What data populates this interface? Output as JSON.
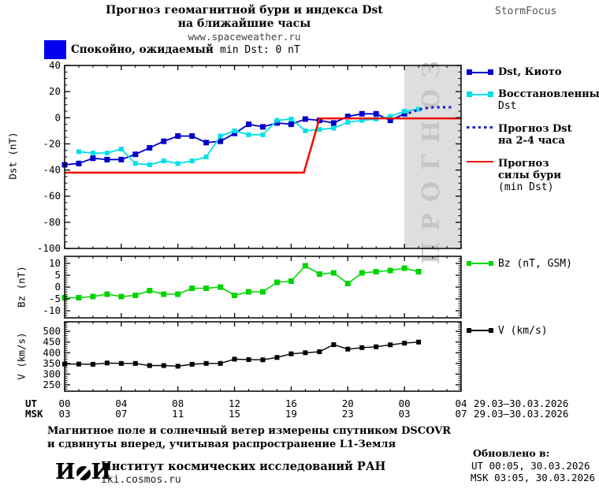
{
  "title": {
    "line1": "Прогноз геомагнитной бури и индекса Dst",
    "line2": "на ближайшие часы",
    "url": "www.spaceweather.ru",
    "brand": "StormFocus"
  },
  "status": {
    "label_ru": "Спокойно, ожидаемый",
    "label_latin": "min Dst: 0 nT",
    "swatch_color": "#0000EE"
  },
  "colors": {
    "kyoto_blue": "#0000CC",
    "restored_cyan": "#00E0E6",
    "forecast_dotted_blue": "#2222CC",
    "storm_red": "#EE1100",
    "bz_green": "#00D400",
    "v_black": "#000000",
    "forecast_band_gray": "#DEDEDE",
    "forecast_band_text_gray": "#C6C6C6"
  },
  "chart_data": [
    {
      "type": "line",
      "name": "dst-panel",
      "ylabel": "Dst (nT)",
      "ylim": [
        -100,
        40
      ],
      "yticks": [
        40,
        20,
        0,
        -20,
        -40,
        -60,
        -80,
        -100
      ],
      "yminor_step": 5,
      "xlim_hours": [
        0,
        28
      ],
      "xtick_hours": [
        0,
        4,
        8,
        12,
        16,
        20,
        24,
        28
      ],
      "grid": false,
      "forecast_band_hours": [
        24,
        28
      ],
      "forecast_band_label": "ПРОГНОЗ",
      "series": [
        {
          "name": "Dst, Киото",
          "color": "#0000CC",
          "width": 1.8,
          "marker": 7,
          "x": [
            0,
            1,
            2,
            3,
            4,
            5,
            6,
            7,
            8,
            9,
            10,
            11,
            12,
            13,
            14,
            15,
            16,
            17,
            18,
            19,
            20,
            21,
            22,
            23,
            24
          ],
          "values": [
            -36,
            -35,
            -31,
            -32,
            -32,
            -28,
            -23,
            -18,
            -14,
            -14,
            -19,
            -18,
            -12,
            -5,
            -7,
            -4,
            -5,
            -1,
            -2,
            -4,
            1,
            3,
            3,
            -2,
            3
          ]
        },
        {
          "name": "Восстановленный Dst",
          "color": "#00E0E6",
          "width": 1.8,
          "marker": 6,
          "x": [
            1,
            2,
            3,
            4,
            5,
            6,
            7,
            8,
            9,
            10,
            11,
            12,
            13,
            14,
            15,
            16,
            17,
            18,
            19,
            20,
            21,
            22,
            23,
            24,
            25
          ],
          "values": [
            -26,
            -27,
            -27,
            -24,
            -35,
            -36,
            -33,
            -35,
            -33,
            -30,
            -14,
            -10,
            -13,
            -13,
            -2,
            -1,
            -10,
            -9,
            -8,
            -3.5,
            -2,
            -1,
            1,
            5,
            6.5
          ]
        },
        {
          "name": "Прогноз Dst на 2-4 часа",
          "color": "#2222CC",
          "width": 3.2,
          "dash": "3.2 4.2",
          "x": [
            24.3,
            24.8,
            25.3,
            26,
            27.5
          ],
          "values": [
            3.5,
            5.5,
            7,
            8,
            8
          ]
        },
        {
          "name": "Прогноз силы бури (min Dst)",
          "color": "#EE1100",
          "width": 2.6,
          "x": [
            0,
            16.9,
            18,
            28
          ],
          "values": [
            -42,
            -42,
            -0.5,
            -0.5
          ]
        }
      ]
    },
    {
      "type": "line",
      "name": "bz-panel",
      "ylabel": "Bz (nT)",
      "ylim": [
        -13,
        13
      ],
      "yticks": [
        10,
        5,
        0,
        -5,
        -10
      ],
      "yminor_step": 1,
      "xlim_hours": [
        0,
        28
      ],
      "xtick_hours": [
        0,
        4,
        8,
        12,
        16,
        20,
        24,
        28
      ],
      "grid": false,
      "series": [
        {
          "name": "Bz (nT, GSM)",
          "color": "#00D400",
          "width": 1.6,
          "marker": 7,
          "x": [
            0,
            1,
            2,
            3,
            4,
            5,
            6,
            7,
            8,
            9,
            10,
            11,
            12,
            13,
            14,
            15,
            16,
            17,
            18,
            19,
            20,
            21,
            22,
            23,
            24,
            25
          ],
          "values": [
            -4.5,
            -4.5,
            -4,
            -3,
            -4,
            -3.5,
            -1.5,
            -3,
            -3,
            -0.5,
            -0.5,
            0,
            -3.5,
            -2,
            -2,
            2,
            2.5,
            9,
            5.5,
            6,
            1.5,
            6,
            6.5,
            7,
            8,
            6.5
          ]
        }
      ]
    },
    {
      "type": "line",
      "name": "v-panel",
      "ylabel": "V (km/s)",
      "ylim": [
        220,
        545
      ],
      "yticks": [
        500,
        450,
        400,
        350,
        300,
        250
      ],
      "yminor_step": 10,
      "xlim_hours": [
        0,
        28
      ],
      "xtick_hours": [
        0,
        4,
        8,
        12,
        16,
        20,
        24,
        28
      ],
      "grid": false,
      "series": [
        {
          "name": "V (km/s)",
          "color": "#000000",
          "width": 1.4,
          "marker": 6,
          "x": [
            0,
            1,
            2,
            3,
            4,
            5,
            6,
            7,
            8,
            9,
            10,
            11,
            12,
            13,
            14,
            15,
            16,
            17,
            18,
            19,
            20,
            21,
            22,
            23,
            24,
            25
          ],
          "values": [
            347,
            347,
            346,
            352,
            350,
            350,
            340,
            340,
            337,
            346,
            350,
            350,
            370,
            368,
            367,
            378,
            395,
            400,
            405,
            438,
            417,
            424,
            428,
            437,
            445,
            450
          ]
        }
      ]
    }
  ],
  "xaxis": {
    "ut_label": "UT",
    "msk_label": "MSK",
    "tick_hours": [
      0,
      4,
      8,
      12,
      16,
      20,
      24,
      28
    ],
    "ut_ticks": [
      "00",
      "04",
      "08",
      "12",
      "16",
      "20",
      "00",
      "04"
    ],
    "msk_ticks": [
      "03",
      "07",
      "11",
      "15",
      "19",
      "23",
      "03",
      "07"
    ],
    "date_ut": "29.03–30.03.2026",
    "date_msk": "29.03–30.03.2026"
  },
  "legend": {
    "kyoto": {
      "label": "Dst, Киото"
    },
    "restored": {
      "line1": "Восстановленный",
      "line2": "Dst"
    },
    "forecast": {
      "line1": "Прогноз Dst",
      "line2": "на 2-4 часа"
    },
    "storm": {
      "line1": "Прогноз",
      "line2": "силы бури",
      "line3": "(min Dst)"
    },
    "bz": {
      "label": "Bz (nT, GSM)"
    },
    "v": {
      "label": "V (km/s)"
    }
  },
  "footer": {
    "note_line1": "Магнитное поле и солнечный ветер измерены спутником DSCOVR",
    "note_line2": "и сдвинуты вперед, учитывая распространение L1-Земля",
    "logo_left": "И",
    "logo_right": "И",
    "institute": "Институт космических исследований РАН",
    "site": "iki.cosmos.ru",
    "updated_title": "Обновлено в:",
    "updated_ut": "UT  00:05, 30.03.2026",
    "updated_msk": "MSK 03:05, 30.03.2026"
  }
}
